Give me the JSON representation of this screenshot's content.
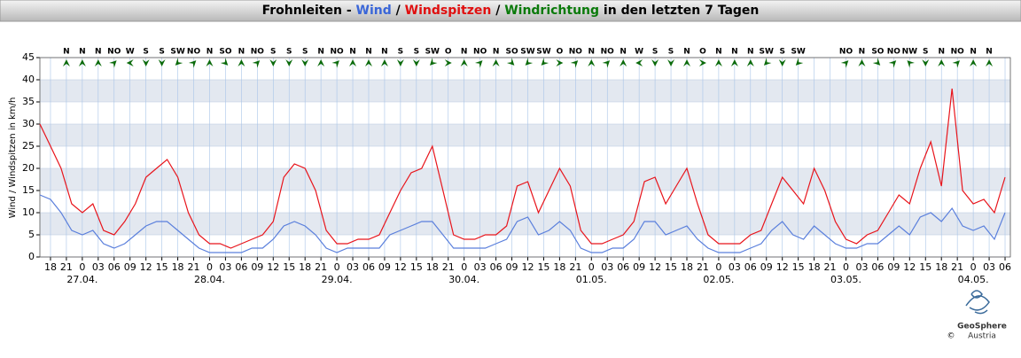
{
  "chart_data": {
    "type": "line",
    "title_parts": [
      {
        "text": "Frohnleiten - ",
        "color": "#000000"
      },
      {
        "text": "Wind",
        "color": "#3a66d8"
      },
      {
        "text": " / ",
        "color": "#000000"
      },
      {
        "text": "Windspitzen",
        "color": "#e01010"
      },
      {
        "text": " / ",
        "color": "#000000"
      },
      {
        "text": "Windrichtung",
        "color": "#0a7a0a"
      },
      {
        "text": " in den letzten 7 Tagen",
        "color": "#000000"
      }
    ],
    "ylabel": "Wind / Windspitzen in km/h",
    "ylim": [
      0,
      45
    ],
    "yticks": [
      0,
      5,
      10,
      15,
      20,
      25,
      30,
      35,
      40,
      45
    ],
    "xlim": [
      0,
      183
    ],
    "xticks": [
      {
        "value": 2,
        "label": "18"
      },
      {
        "value": 5,
        "label": "21"
      },
      {
        "value": 8,
        "label": "0"
      },
      {
        "value": 11,
        "label": "03"
      },
      {
        "value": 14,
        "label": "06"
      },
      {
        "value": 17,
        "label": "09"
      },
      {
        "value": 20,
        "label": "12"
      },
      {
        "value": 23,
        "label": "15"
      },
      {
        "value": 26,
        "label": "18"
      },
      {
        "value": 29,
        "label": "21"
      },
      {
        "value": 32,
        "label": "0"
      },
      {
        "value": 35,
        "label": "03"
      },
      {
        "value": 38,
        "label": "06"
      },
      {
        "value": 41,
        "label": "09"
      },
      {
        "value": 44,
        "label": "12"
      },
      {
        "value": 47,
        "label": "15"
      },
      {
        "value": 50,
        "label": "18"
      },
      {
        "value": 53,
        "label": "21"
      },
      {
        "value": 56,
        "label": "0"
      },
      {
        "value": 59,
        "label": "03"
      },
      {
        "value": 62,
        "label": "06"
      },
      {
        "value": 65,
        "label": "09"
      },
      {
        "value": 68,
        "label": "12"
      },
      {
        "value": 71,
        "label": "15"
      },
      {
        "value": 74,
        "label": "18"
      },
      {
        "value": 77,
        "label": "21"
      },
      {
        "value": 80,
        "label": "0"
      },
      {
        "value": 83,
        "label": "03"
      },
      {
        "value": 86,
        "label": "06"
      },
      {
        "value": 89,
        "label": "09"
      },
      {
        "value": 92,
        "label": "12"
      },
      {
        "value": 95,
        "label": "15"
      },
      {
        "value": 98,
        "label": "18"
      },
      {
        "value": 101,
        "label": "21"
      },
      {
        "value": 104,
        "label": "0"
      },
      {
        "value": 107,
        "label": "03"
      },
      {
        "value": 110,
        "label": "06"
      },
      {
        "value": 113,
        "label": "09"
      },
      {
        "value": 116,
        "label": "12"
      },
      {
        "value": 119,
        "label": "15"
      },
      {
        "value": 122,
        "label": "18"
      },
      {
        "value": 125,
        "label": "21"
      },
      {
        "value": 128,
        "label": "0"
      },
      {
        "value": 131,
        "label": "03"
      },
      {
        "value": 134,
        "label": "06"
      },
      {
        "value": 137,
        "label": "09"
      },
      {
        "value": 140,
        "label": "12"
      },
      {
        "value": 143,
        "label": "15"
      },
      {
        "value": 146,
        "label": "18"
      },
      {
        "value": 149,
        "label": "21"
      },
      {
        "value": 152,
        "label": "0"
      },
      {
        "value": 155,
        "label": "03"
      },
      {
        "value": 158,
        "label": "06"
      },
      {
        "value": 161,
        "label": "09"
      },
      {
        "value": 164,
        "label": "12"
      },
      {
        "value": 167,
        "label": "15"
      },
      {
        "value": 170,
        "label": "18"
      },
      {
        "value": 173,
        "label": "21"
      },
      {
        "value": 176,
        "label": "0"
      },
      {
        "value": 179,
        "label": "03"
      },
      {
        "value": 182,
        "label": "06"
      }
    ],
    "date_labels": [
      {
        "value": 8,
        "label": "27.04."
      },
      {
        "value": 32,
        "label": "28.04."
      },
      {
        "value": 56,
        "label": "29.04."
      },
      {
        "value": 80,
        "label": "30.04."
      },
      {
        "value": 104,
        "label": "01.05."
      },
      {
        "value": 128,
        "label": "02.05."
      },
      {
        "value": 152,
        "label": "03.05."
      },
      {
        "value": 176,
        "label": "04.05."
      }
    ],
    "x": [
      0,
      2,
      4,
      6,
      8,
      10,
      12,
      14,
      16,
      18,
      20,
      22,
      24,
      26,
      28,
      30,
      32,
      34,
      36,
      38,
      40,
      42,
      44,
      46,
      48,
      50,
      52,
      54,
      56,
      58,
      60,
      62,
      64,
      66,
      68,
      70,
      72,
      74,
      76,
      78,
      80,
      82,
      84,
      86,
      88,
      90,
      92,
      94,
      96,
      98,
      100,
      102,
      104,
      106,
      108,
      110,
      112,
      114,
      116,
      118,
      120,
      122,
      124,
      126,
      128,
      130,
      132,
      134,
      136,
      138,
      140,
      142,
      144,
      146,
      148,
      150,
      152,
      154,
      156,
      158,
      160,
      162,
      164,
      166,
      168,
      170,
      172,
      174,
      176,
      178,
      180,
      182
    ],
    "series": [
      {
        "name": "Windspitzen",
        "color": "#e8141b",
        "values": [
          30,
          25,
          20,
          12,
          10,
          12,
          6,
          5,
          8,
          12,
          18,
          20,
          22,
          18,
          10,
          5,
          3,
          3,
          2,
          3,
          4,
          5,
          8,
          18,
          21,
          20,
          15,
          6,
          3,
          3,
          4,
          4,
          5,
          10,
          15,
          19,
          20,
          25,
          15,
          5,
          4,
          4,
          5,
          5,
          7,
          16,
          17,
          10,
          15,
          20,
          16,
          6,
          3,
          3,
          4,
          5,
          8,
          17,
          18,
          12,
          16,
          20,
          12,
          5,
          3,
          3,
          3,
          5,
          6,
          12,
          18,
          15,
          12,
          20,
          15,
          8,
          4,
          3,
          5,
          6,
          10,
          14,
          12,
          20,
          26,
          16,
          38,
          15,
          12,
          13,
          10,
          18
        ]
      },
      {
        "name": "Wind",
        "color": "#5a7fdc",
        "values": [
          14,
          13,
          10,
          6,
          5,
          6,
          3,
          2,
          3,
          5,
          7,
          8,
          8,
          6,
          4,
          2,
          1,
          1,
          1,
          1,
          2,
          2,
          4,
          7,
          8,
          7,
          5,
          2,
          1,
          2,
          2,
          2,
          2,
          5,
          6,
          7,
          8,
          8,
          5,
          2,
          2,
          2,
          2,
          3,
          4,
          8,
          9,
          5,
          6,
          8,
          6,
          2,
          1,
          1,
          2,
          2,
          4,
          8,
          8,
          5,
          6,
          7,
          4,
          2,
          1,
          1,
          1,
          2,
          3,
          6,
          8,
          5,
          4,
          7,
          5,
          3,
          2,
          2,
          3,
          3,
          5,
          7,
          5,
          9,
          10,
          8,
          11,
          7,
          6,
          7,
          4,
          10
        ]
      }
    ],
    "wind_direction": {
      "color": "#0a6a0a",
      "x": [
        5,
        8,
        11,
        14,
        17,
        20,
        23,
        26,
        29,
        32,
        35,
        38,
        41,
        44,
        47,
        50,
        53,
        56,
        59,
        62,
        65,
        68,
        71,
        74,
        77,
        80,
        83,
        86,
        89,
        92,
        95,
        98,
        101,
        104,
        107,
        110,
        113,
        116,
        119,
        122,
        125,
        128,
        131,
        134,
        137,
        140,
        143,
        146,
        149,
        152,
        155,
        158,
        161,
        164,
        167,
        170,
        173,
        176,
        179
      ],
      "labels": [
        "N",
        "N",
        "N",
        "NO",
        "W",
        "S",
        "S",
        "SW",
        "NO",
        "N",
        "SO",
        "N",
        "NO",
        "S",
        "S",
        "S",
        "N",
        "NO",
        "N",
        "N",
        "N",
        "S",
        "S",
        "SW",
        "O",
        "N",
        "NO",
        "N",
        "SO",
        "SW",
        "SW",
        "O",
        "NO",
        "N",
        "NO",
        "N",
        "W",
        "S",
        "S",
        "N",
        "O",
        "N",
        "N",
        "N",
        "SW",
        "S",
        "SW",
        null,
        null,
        "NO",
        "N",
        "SO",
        "NO",
        "NW",
        "S",
        "N",
        "NO",
        "N",
        "N"
      ]
    },
    "grid": true,
    "logo": {
      "name": "GeoSphere",
      "sub": "Austria",
      "copyright": "©"
    }
  }
}
